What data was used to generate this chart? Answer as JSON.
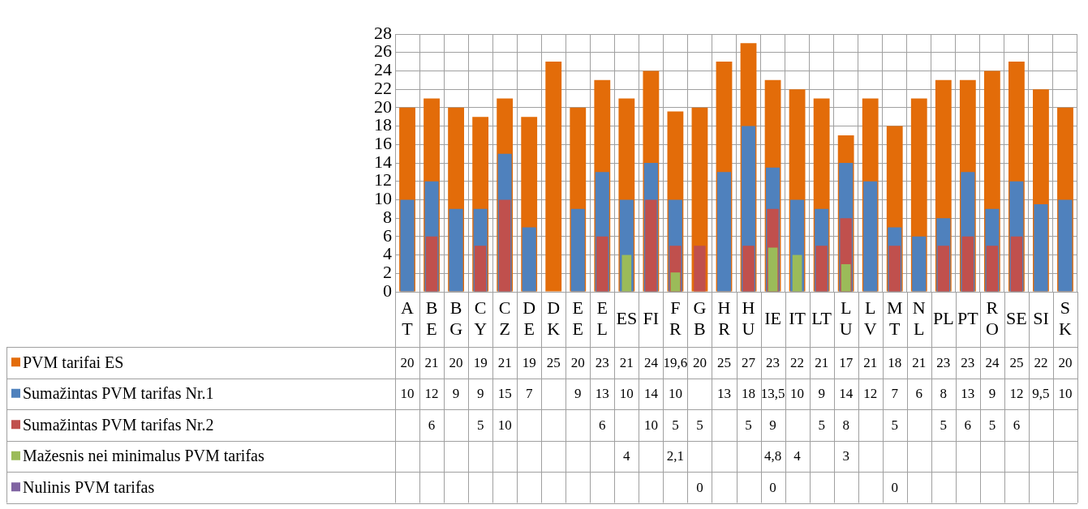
{
  "chart_data": {
    "type": "bar",
    "categories": [
      "AT",
      "BE",
      "BG",
      "CY",
      "CZ",
      "DE",
      "DK",
      "EE",
      "EL",
      "ES",
      "FI",
      "FR",
      "GB",
      "HR",
      "HU",
      "IE",
      "IT",
      "LT",
      "LU",
      "LV",
      "MT",
      "NL",
      "PL",
      "PT",
      "RO",
      "SE",
      "SI",
      "SK"
    ],
    "series": [
      {
        "name": "PVM tarifai ES",
        "color": "#e36c09",
        "values": [
          20,
          21,
          20,
          19,
          21,
          19,
          25,
          20,
          23,
          21,
          24,
          19.6,
          20,
          25,
          27,
          23,
          22,
          21,
          17,
          21,
          18,
          21,
          23,
          23,
          24,
          25,
          22,
          20
        ],
        "value_labels": [
          "20",
          "21",
          "20",
          "19",
          "21",
          "19",
          "25",
          "20",
          "23",
          "21",
          "24",
          "19,6",
          "20",
          "25",
          "27",
          "23",
          "22",
          "21",
          "17",
          "21",
          "18",
          "21",
          "23",
          "23",
          "24",
          "25",
          "22",
          "20"
        ]
      },
      {
        "name": "Sumažintas PVM tarifas Nr.1",
        "color": "#4f81bd",
        "values": [
          10,
          12,
          9,
          9,
          15,
          7,
          null,
          9,
          13,
          10,
          14,
          10,
          null,
          13,
          18,
          13.5,
          10,
          9,
          14,
          12,
          7,
          6,
          8,
          13,
          9,
          12,
          9.5,
          10
        ],
        "value_labels": [
          "10",
          "12",
          "9",
          "9",
          "15",
          "7",
          null,
          "9",
          "13",
          "10",
          "14",
          "10",
          null,
          "13",
          "18",
          "13,5",
          "10",
          "9",
          "14",
          "12",
          "7",
          "6",
          "8",
          "13",
          "9",
          "12",
          "9,5",
          "10"
        ]
      },
      {
        "name": "Sumažintas PVM tarifas Nr.2",
        "color": "#c0504d",
        "values": [
          null,
          6,
          null,
          5,
          10,
          null,
          null,
          null,
          6,
          null,
          10,
          5,
          5,
          null,
          5,
          9,
          null,
          5,
          8,
          null,
          5,
          null,
          5,
          6,
          5,
          6,
          null,
          null
        ],
        "value_labels": [
          null,
          "6",
          null,
          "5",
          "10",
          null,
          null,
          null,
          "6",
          null,
          "10",
          "5",
          "5",
          null,
          "5",
          "9",
          null,
          "5",
          "8",
          null,
          "5",
          null,
          "5",
          "6",
          "5",
          "6",
          null,
          null
        ]
      },
      {
        "name": "Mažesnis nei minimalus PVM tarifas",
        "color": "#9bbb59",
        "values": [
          null,
          null,
          null,
          null,
          null,
          null,
          null,
          null,
          null,
          4,
          null,
          2.1,
          null,
          null,
          null,
          4.8,
          4,
          null,
          3,
          null,
          null,
          null,
          null,
          null,
          null,
          null,
          null,
          null
        ],
        "value_labels": [
          null,
          null,
          null,
          null,
          null,
          null,
          null,
          null,
          null,
          "4",
          null,
          "2,1",
          null,
          null,
          null,
          "4,8",
          "4",
          null,
          "3",
          null,
          null,
          null,
          null,
          null,
          null,
          null,
          null,
          null
        ]
      },
      {
        "name": "Nulinis PVM tarifas",
        "color": "#8064a2",
        "values": [
          null,
          null,
          null,
          null,
          null,
          null,
          null,
          null,
          null,
          null,
          null,
          null,
          0,
          null,
          null,
          0,
          null,
          null,
          null,
          null,
          0,
          null,
          null,
          null,
          null,
          null,
          null,
          null
        ],
        "value_labels": [
          null,
          null,
          null,
          null,
          null,
          null,
          null,
          null,
          null,
          null,
          null,
          null,
          "0",
          null,
          null,
          "0",
          null,
          null,
          null,
          null,
          "0",
          null,
          null,
          null,
          null,
          null,
          null,
          null
        ]
      }
    ],
    "legend": "bottom",
    "ylim": [
      0,
      28
    ],
    "yticks": [
      0,
      2,
      4,
      6,
      8,
      10,
      12,
      14,
      16,
      18,
      20,
      22,
      24,
      26,
      28
    ],
    "grid": true
  }
}
